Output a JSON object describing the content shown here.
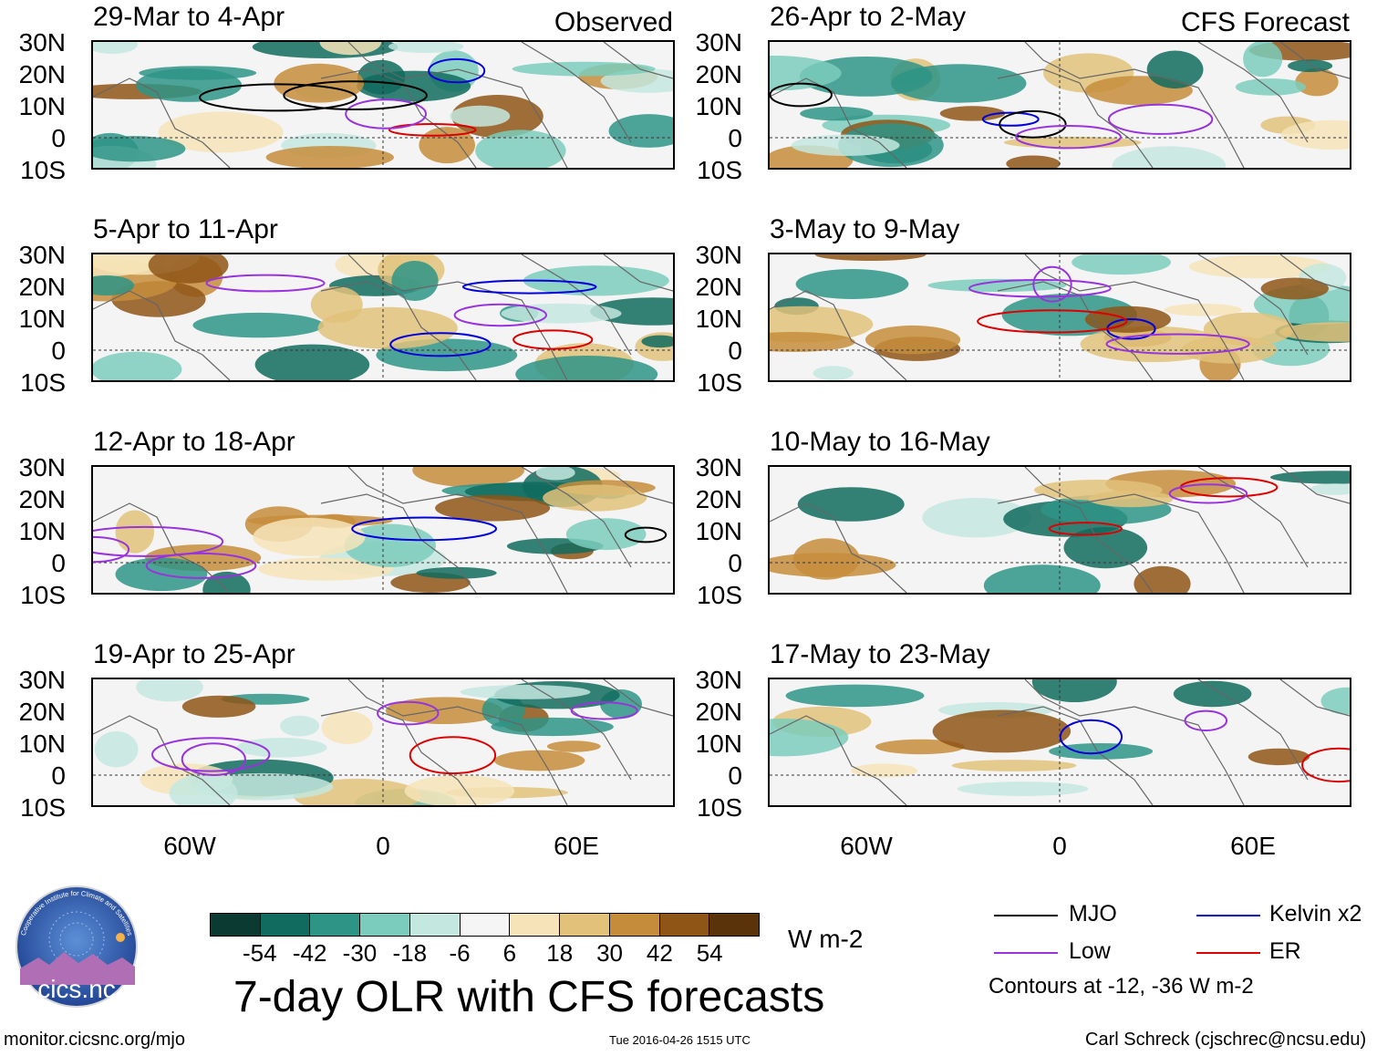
{
  "title": "7-day OLR with CFS forecasts",
  "observed_label": "Observed",
  "forecast_label": "CFS Forecast",
  "panels_observed": [
    {
      "date_range": "29-Mar to 4-Apr"
    },
    {
      "date_range": "5-Apr to 11-Apr"
    },
    {
      "date_range": "12-Apr to 18-Apr"
    },
    {
      "date_range": "19-Apr to 25-Apr"
    }
  ],
  "panels_forecast": [
    {
      "date_range": "26-Apr to 2-May"
    },
    {
      "date_range": "3-May to 9-May"
    },
    {
      "date_range": "10-May to 16-May"
    },
    {
      "date_range": "17-May to 23-May"
    }
  ],
  "lat_labels": [
    "30N",
    "20N",
    "10N",
    "0",
    "10S"
  ],
  "lon_labels": [
    "60W",
    "0",
    "60E"
  ],
  "colorbar": {
    "ticks": [
      "-54",
      "-42",
      "-30",
      "-18",
      "-6",
      "6",
      "18",
      "30",
      "42",
      "54"
    ],
    "units": "W m-2",
    "colors": [
      "#0b3a33",
      "#116b5e",
      "#2e9486",
      "#7bccbc",
      "#c4e8df",
      "#f5f5f5",
      "#f6e4b8",
      "#e2c27a",
      "#c58d3b",
      "#8e5516",
      "#5a330b"
    ]
  },
  "legend": {
    "items": [
      {
        "label": "MJO",
        "color": "#000000"
      },
      {
        "label": "Kelvin x2",
        "color": "#0000dd"
      },
      {
        "label": "Low",
        "color": "#9933dd"
      },
      {
        "label": "ER",
        "color": "#dd0000"
      }
    ],
    "note": "Contours at -12, -36 W m-2"
  },
  "logo_text": "cics.nc",
  "logo_arc_text": "Cooperative Institute for Climate and Satellites",
  "footer": {
    "left": "monitor.cicsnc.org/mjo",
    "center": "Tue 2016-04-26 1515 UTC",
    "right": "Carl Schreck (cjschrec@ncsu.edu)"
  }
}
